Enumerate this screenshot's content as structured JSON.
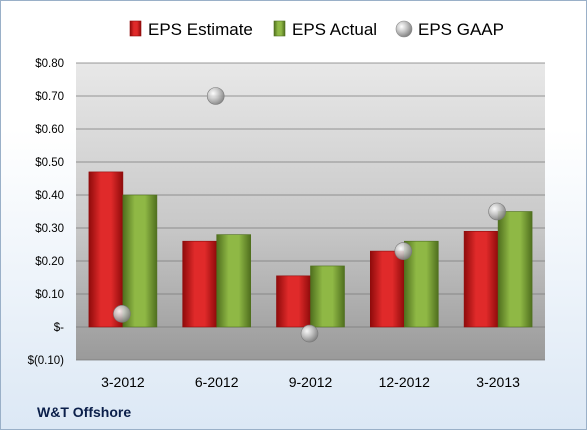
{
  "chart_data": {
    "type": "bar",
    "categories": [
      "3-2012",
      "6-2012",
      "9-2012",
      "12-2012",
      "3-2013"
    ],
    "series": [
      {
        "name": "EPS Estimate",
        "kind": "bar",
        "color": "#cc1f1f",
        "values": [
          0.47,
          0.26,
          0.155,
          0.23,
          0.29
        ]
      },
      {
        "name": "EPS Actual",
        "kind": "bar",
        "color": "#7fa33a",
        "values": [
          0.4,
          0.28,
          0.185,
          0.26,
          0.35
        ]
      },
      {
        "name": "EPS GAAP",
        "kind": "marker",
        "color": "#bfbfbf",
        "values": [
          0.04,
          0.7,
          -0.02,
          0.23,
          0.35
        ]
      }
    ],
    "ylim": [
      -0.1,
      0.8
    ],
    "yticks": [
      -0.1,
      0.0,
      0.1,
      0.2,
      0.3,
      0.4,
      0.5,
      0.6,
      0.7,
      0.8
    ],
    "ytick_labels": [
      "$(0.10)",
      "$-",
      "$0.10",
      "$0.20",
      "$0.30",
      "$0.40",
      "$0.50",
      "$0.60",
      "$0.70",
      "$0.80"
    ],
    "grid": true,
    "legend_position": "top",
    "footer_label": "W&T Offshore"
  }
}
